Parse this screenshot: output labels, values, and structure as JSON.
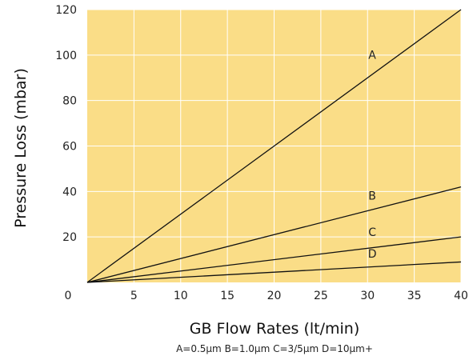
{
  "chart_data": {
    "type": "line",
    "xlabel": "GB Flow Rates (lt/min)",
    "ylabel": "Pressure Loss (mbar)",
    "footnote": "A=0.5µm B=1.0µm C=3/5µm D=10µm+",
    "xlim": [
      0,
      40
    ],
    "ylim": [
      0,
      120
    ],
    "x_ticks": [
      0,
      5,
      10,
      15,
      20,
      25,
      30,
      35,
      40
    ],
    "y_ticks": [
      20,
      40,
      60,
      80,
      100,
      120
    ],
    "origin_label": "0",
    "grid": true,
    "background_color": "#fadd87",
    "grid_color": "#ffffff",
    "line_color": "#111111",
    "series": [
      {
        "name": "A",
        "x": [
          0,
          40
        ],
        "y": [
          0,
          120
        ],
        "label_x": 30.5,
        "label_y": 97
      },
      {
        "name": "B",
        "x": [
          0,
          40
        ],
        "y": [
          0,
          42
        ],
        "label_x": 30.5,
        "label_y": 35
      },
      {
        "name": "C",
        "x": [
          0,
          40
        ],
        "y": [
          0,
          20
        ],
        "label_x": 30.5,
        "label_y": 19
      },
      {
        "name": "D",
        "x": [
          0,
          40
        ],
        "y": [
          0,
          9
        ],
        "label_x": 30.5,
        "label_y": 9.5
      }
    ]
  }
}
